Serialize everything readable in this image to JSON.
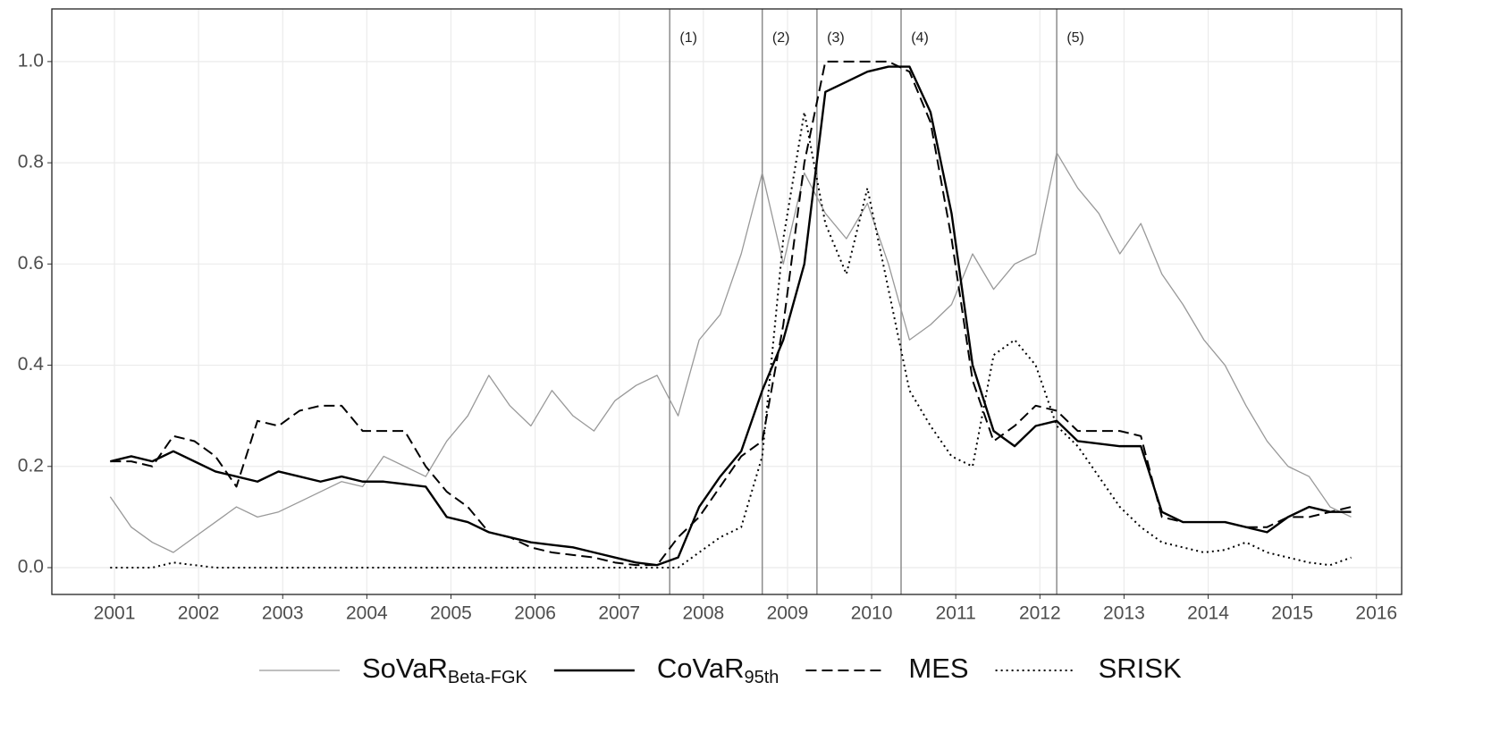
{
  "chart_data": {
    "type": "line",
    "x": [
      2000.95,
      2001.2,
      2001.45,
      2001.7,
      2001.95,
      2002.2,
      2002.45,
      2002.7,
      2002.95,
      2003.2,
      2003.45,
      2003.7,
      2003.95,
      2004.2,
      2004.45,
      2004.7,
      2004.95,
      2005.2,
      2005.45,
      2005.7,
      2005.95,
      2006.2,
      2006.45,
      2006.7,
      2006.95,
      2007.2,
      2007.45,
      2007.7,
      2007.95,
      2008.2,
      2008.45,
      2008.7,
      2008.95,
      2009.2,
      2009.45,
      2009.7,
      2009.95,
      2010.2,
      2010.45,
      2010.7,
      2010.95,
      2011.2,
      2011.45,
      2011.7,
      2011.95,
      2012.2,
      2012.45,
      2012.7,
      2012.95,
      2013.2,
      2013.45,
      2013.7,
      2013.95,
      2014.2,
      2014.45,
      2014.7,
      2014.95,
      2015.2,
      2015.45,
      2015.7
    ],
    "series": [
      {
        "name": "SoVaR",
        "subscript": "Beta-FGK",
        "color": "#999999",
        "style": "solid",
        "values": [
          0.14,
          0.08,
          0.05,
          0.03,
          0.06,
          0.09,
          0.12,
          0.1,
          0.11,
          0.13,
          0.15,
          0.17,
          0.16,
          0.22,
          0.2,
          0.18,
          0.25,
          0.3,
          0.38,
          0.32,
          0.28,
          0.35,
          0.3,
          0.27,
          0.33,
          0.36,
          0.38,
          0.3,
          0.45,
          0.5,
          0.62,
          0.78,
          0.6,
          0.78,
          0.7,
          0.65,
          0.72,
          0.6,
          0.45,
          0.48,
          0.52,
          0.62,
          0.55,
          0.6,
          0.62,
          0.82,
          0.75,
          0.7,
          0.62,
          0.68,
          0.58,
          0.52,
          0.45,
          0.4,
          0.32,
          0.25,
          0.2,
          0.18,
          0.12,
          0.1
        ]
      },
      {
        "name": "CoVaR",
        "subscript": "95th",
        "color": "#000000",
        "style": "solid",
        "values": [
          0.21,
          0.22,
          0.21,
          0.23,
          0.21,
          0.19,
          0.18,
          0.17,
          0.19,
          0.18,
          0.17,
          0.18,
          0.17,
          0.17,
          0.165,
          0.16,
          0.1,
          0.09,
          0.07,
          0.06,
          0.05,
          0.045,
          0.04,
          0.03,
          0.02,
          0.01,
          0.005,
          0.02,
          0.12,
          0.18,
          0.23,
          0.35,
          0.45,
          0.6,
          0.94,
          0.96,
          0.98,
          0.99,
          0.99,
          0.9,
          0.7,
          0.4,
          0.27,
          0.24,
          0.28,
          0.29,
          0.25,
          0.245,
          0.24,
          0.24,
          0.11,
          0.09,
          0.09,
          0.09,
          0.08,
          0.07,
          0.1,
          0.12,
          0.11,
          0.11
        ]
      },
      {
        "name": "MES",
        "color": "#000000",
        "style": "dashed",
        "values": [
          0.21,
          0.21,
          0.2,
          0.26,
          0.25,
          0.22,
          0.16,
          0.29,
          0.28,
          0.31,
          0.32,
          0.32,
          0.27,
          0.27,
          0.27,
          0.2,
          0.15,
          0.12,
          0.07,
          0.06,
          0.04,
          0.03,
          0.025,
          0.02,
          0.01,
          0.005,
          0.005,
          0.06,
          0.1,
          0.16,
          0.22,
          0.25,
          0.48,
          0.8,
          1.0,
          1.0,
          1.0,
          1.0,
          0.98,
          0.88,
          0.65,
          0.37,
          0.25,
          0.28,
          0.32,
          0.31,
          0.27,
          0.27,
          0.27,
          0.26,
          0.1,
          0.09,
          0.09,
          0.09,
          0.08,
          0.08,
          0.1,
          0.1,
          0.11,
          0.12
        ]
      },
      {
        "name": "SRISK",
        "color": "#000000",
        "style": "dotted",
        "values": [
          0,
          0,
          0,
          0.01,
          0.005,
          0,
          0,
          0,
          0,
          0,
          0,
          0,
          0,
          0,
          0,
          0,
          0,
          0,
          0,
          0,
          0,
          0,
          0,
          0,
          0,
          0,
          0,
          0,
          0.03,
          0.06,
          0.08,
          0.22,
          0.65,
          0.9,
          0.68,
          0.58,
          0.75,
          0.55,
          0.35,
          0.28,
          0.22,
          0.2,
          0.42,
          0.45,
          0.4,
          0.28,
          0.24,
          0.18,
          0.12,
          0.08,
          0.05,
          0.04,
          0.03,
          0.035,
          0.05,
          0.03,
          0.02,
          0.01,
          0.005,
          0.02
        ]
      }
    ],
    "annotations": [
      {
        "x": 2007.6,
        "label": "(1)"
      },
      {
        "x": 2008.7,
        "label": "(2)"
      },
      {
        "x": 2009.35,
        "label": "(3)"
      },
      {
        "x": 2010.35,
        "label": "(4)"
      },
      {
        "x": 2012.2,
        "label": "(5)"
      }
    ],
    "xlim": [
      2000.256,
      2016.3
    ],
    "ylim": [
      -0.053,
      1.104
    ],
    "xticks": [
      2001,
      2002,
      2003,
      2004,
      2005,
      2006,
      2007,
      2008,
      2009,
      2010,
      2011,
      2012,
      2013,
      2014,
      2015,
      2016
    ],
    "yticks": [
      {
        "value": 0,
        "label": "0.0"
      },
      {
        "value": 0.2,
        "label": "0.2"
      },
      {
        "value": 0.4,
        "label": "0.4"
      },
      {
        "value": 0.6,
        "label": "0.6"
      },
      {
        "value": 0.8,
        "label": "0.8"
      },
      {
        "value": 1.0,
        "label": "1.0"
      }
    ],
    "grid": true,
    "legend": "bottom"
  }
}
